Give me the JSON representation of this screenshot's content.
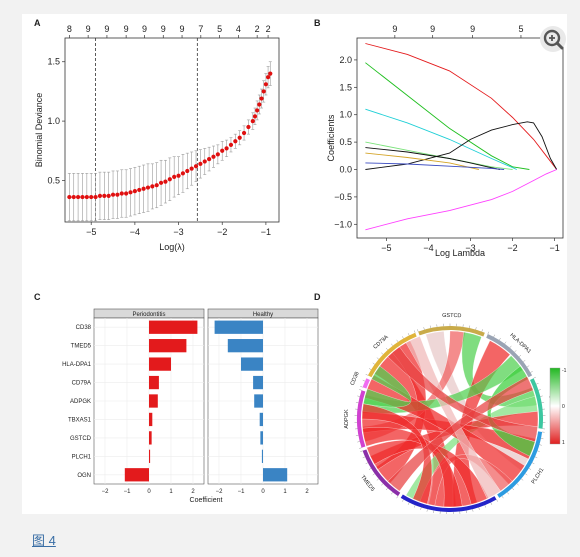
{
  "caption": "图 4",
  "chart_data": [
    {
      "panel": "A",
      "type": "scatter",
      "xlabel": "Log(λ)",
      "ylabel": "Binomial Deviance",
      "xlim": [
        -5.6,
        -0.7
      ],
      "ylim": [
        0.15,
        1.7
      ],
      "x_ticks": [
        -5,
        -4,
        -3,
        -2,
        -1
      ],
      "y_ticks": [
        0.5,
        1.0,
        1.5
      ],
      "top_ticks": [
        {
          "x": -5.5,
          "label": "8"
        },
        {
          "x": -5.07,
          "label": "9"
        },
        {
          "x": -4.64,
          "label": "9"
        },
        {
          "x": -4.2,
          "label": "9"
        },
        {
          "x": -3.78,
          "label": "9"
        },
        {
          "x": -3.35,
          "label": "9"
        },
        {
          "x": -2.92,
          "label": "9"
        },
        {
          "x": -2.49,
          "label": "7"
        },
        {
          "x": -2.06,
          "label": "5"
        },
        {
          "x": -1.63,
          "label": "4"
        },
        {
          "x": -1.2,
          "label": "2"
        },
        {
          "x": -0.95,
          "label": "2"
        }
      ],
      "vlines": [
        -4.9,
        -2.57
      ],
      "series": [
        {
          "x": [
            -5.5,
            -5.4,
            -5.3,
            -5.2,
            -5.1,
            -5.0,
            -4.9,
            -4.8,
            -4.7,
            -4.6,
            -4.5,
            -4.4,
            -4.3,
            -4.2,
            -4.1,
            -4.0,
            -3.9,
            -3.8,
            -3.7,
            -3.6,
            -3.5,
            -3.4,
            -3.3,
            -3.2,
            -3.1,
            -3.0,
            -2.9,
            -2.8,
            -2.7,
            -2.6,
            -2.5,
            -2.4,
            -2.3,
            -2.2,
            -2.1,
            -2.0,
            -1.9,
            -1.8,
            -1.7,
            -1.6,
            -1.5,
            -1.4,
            -1.3,
            -1.25,
            -1.2,
            -1.15,
            -1.1,
            -1.05,
            -1.0,
            -0.95,
            -0.9
          ],
          "y": [
            0.36,
            0.36,
            0.36,
            0.36,
            0.36,
            0.36,
            0.36,
            0.37,
            0.37,
            0.37,
            0.38,
            0.38,
            0.39,
            0.39,
            0.4,
            0.41,
            0.42,
            0.43,
            0.44,
            0.45,
            0.46,
            0.48,
            0.49,
            0.51,
            0.53,
            0.54,
            0.56,
            0.58,
            0.6,
            0.62,
            0.64,
            0.66,
            0.68,
            0.7,
            0.72,
            0.75,
            0.77,
            0.8,
            0.83,
            0.86,
            0.9,
            0.95,
            1.0,
            1.04,
            1.09,
            1.14,
            1.19,
            1.25,
            1.31,
            1.37,
            1.4
          ],
          "err": [
            0.2,
            0.2,
            0.2,
            0.2,
            0.2,
            0.2,
            0.2,
            0.2,
            0.2,
            0.2,
            0.2,
            0.2,
            0.2,
            0.2,
            0.2,
            0.2,
            0.2,
            0.2,
            0.2,
            0.19,
            0.19,
            0.19,
            0.18,
            0.18,
            0.17,
            0.16,
            0.16,
            0.15,
            0.14,
            0.13,
            0.12,
            0.11,
            0.1,
            0.09,
            0.08,
            0.08,
            0.07,
            0.06,
            0.06,
            0.06,
            0.06,
            0.06,
            0.07,
            0.07,
            0.08,
            0.08,
            0.08,
            0.09,
            0.09,
            0.09,
            0.1
          ]
        }
      ]
    },
    {
      "panel": "B",
      "type": "line",
      "xlabel": "Log Lambda",
      "ylabel": "Coefficients",
      "xlim": [
        -5.7,
        -0.8
      ],
      "ylim": [
        -1.25,
        2.4
      ],
      "x_ticks": [
        -5,
        -4,
        -3,
        -2,
        -1
      ],
      "y_ticks": [
        -1.0,
        -0.5,
        0.0,
        0.5,
        1.0,
        1.5,
        2.0
      ],
      "top_ticks": [
        {
          "x": -4.8,
          "label": "9"
        },
        {
          "x": -3.9,
          "label": "9"
        },
        {
          "x": -2.95,
          "label": "9"
        },
        {
          "x": -1.8,
          "label": "5"
        }
      ],
      "series": [
        {
          "color": "#e41a1c",
          "x": [
            -5.5,
            -4.5,
            -3.5,
            -2.5,
            -2.0,
            -1.5,
            -1.2,
            -0.95
          ],
          "y": [
            2.3,
            2.1,
            1.8,
            1.3,
            0.95,
            0.55,
            0.25,
            0.0
          ]
        },
        {
          "color": "#1fbf1f",
          "x": [
            -5.5,
            -4.5,
            -3.5,
            -2.5,
            -2.0,
            -1.6
          ],
          "y": [
            1.95,
            1.35,
            0.75,
            0.25,
            0.05,
            0.0
          ]
        },
        {
          "color": "#1fcfd6",
          "x": [
            -5.5,
            -4.5,
            -3.5,
            -2.5,
            -1.9
          ],
          "y": [
            1.1,
            0.85,
            0.55,
            0.2,
            0.0
          ]
        },
        {
          "color": "#7ce37c",
          "x": [
            -5.5,
            -4.5,
            -3.5,
            -2.5,
            -2.0
          ],
          "y": [
            0.5,
            0.35,
            0.2,
            0.05,
            0.0
          ]
        },
        {
          "color": "#111111",
          "x": [
            -5.5,
            -4.5,
            -3.5,
            -3.0,
            -2.5,
            -2.0,
            -1.65,
            -1.5,
            -1.3,
            -1.1,
            -0.95
          ],
          "y": [
            0.0,
            0.1,
            0.3,
            0.55,
            0.72,
            0.82,
            0.87,
            0.85,
            0.6,
            0.2,
            0.0
          ]
        },
        {
          "color": "#111111",
          "x": [
            -5.5,
            -4.5,
            -3.5,
            -3.0,
            -2.6,
            -2.3
          ],
          "y": [
            0.4,
            0.32,
            0.2,
            0.12,
            0.05,
            0.0
          ]
        },
        {
          "color": "#d4a52a",
          "x": [
            -5.5,
            -4.5,
            -3.5,
            -2.8
          ],
          "y": [
            0.3,
            0.22,
            0.12,
            0.0
          ]
        },
        {
          "color": "#3b4cc0",
          "x": [
            -5.5,
            -4.5,
            -3.5,
            -2.5,
            -2.2
          ],
          "y": [
            0.12,
            0.1,
            0.06,
            0.02,
            0.0
          ]
        },
        {
          "color": "#ff40ff",
          "x": [
            -5.5,
            -4.5,
            -3.5,
            -2.5,
            -2.0,
            -1.5,
            -1.2,
            -0.95
          ],
          "y": [
            -1.1,
            -0.9,
            -0.75,
            -0.55,
            -0.4,
            -0.2,
            -0.08,
            0.0
          ]
        }
      ]
    },
    {
      "panel": "C",
      "type": "bar",
      "xlabel": "Coefficient",
      "facets": [
        "Periodontitis",
        "Healthy"
      ],
      "categories": [
        "CD38",
        "TMED5",
        "HLA-DPA1",
        "CD79A",
        "ADPGK",
        "TBXAS1",
        "GSTCD",
        "PLCH1",
        "OGN"
      ],
      "xlim": [
        -2.5,
        2.5
      ],
      "x_ticks": [
        -2,
        -1,
        0,
        1,
        2
      ],
      "series": [
        {
          "color": "#e31a1c",
          "values": [
            2.2,
            1.7,
            1.0,
            0.45,
            0.4,
            0.15,
            0.12,
            0.05,
            -1.1
          ]
        },
        {
          "color": "#3a84c4",
          "values": [
            -2.2,
            -1.6,
            -1.0,
            -0.45,
            -0.4,
            -0.15,
            -0.12,
            -0.05,
            1.1
          ]
        }
      ]
    },
    {
      "panel": "D",
      "type": "heatmap",
      "genes": [
        {
          "name": "CD79A",
          "start": -62,
          "end": -22,
          "color": "#e0b43a"
        },
        {
          "name": "GSTCD",
          "start": -20,
          "end": 22,
          "color": "#c9ab4a"
        },
        {
          "name": "HLA-DPA1",
          "start": 24,
          "end": 62,
          "color": "#9aa4b4"
        },
        {
          "name": "OGN",
          "start": 64,
          "end": 96,
          "color": "#3cc7a0"
        },
        {
          "name": "PLCH1",
          "start": 98,
          "end": 148,
          "color": "#2d9be0"
        },
        {
          "name": "TBXAS1",
          "start": 150,
          "end": 212,
          "color": "#2424c8"
        },
        {
          "name": "TMED5",
          "start": 214,
          "end": 250,
          "color": "#8a2fa8"
        },
        {
          "name": "ADPGK",
          "start": 252,
          "end": 288,
          "color": "#d042d0"
        },
        {
          "name": "CD38",
          "start": 290,
          "end": 296,
          "color": "#f06ef0"
        }
      ],
      "links": [
        {
          "a": -50,
          "b": 185,
          "color": "#ef2a2a",
          "w": 18
        },
        {
          "a": -34,
          "b": 230,
          "color": "#ef2a2a",
          "w": 14
        },
        {
          "a": -10,
          "b": 120,
          "color": "#e8c8c8",
          "w": 12
        },
        {
          "a": 5,
          "b": 260,
          "color": "#f06060",
          "w": 10
        },
        {
          "a": 15,
          "b": 75,
          "color": "#4fd04f",
          "w": 12
        },
        {
          "a": 35,
          "b": 170,
          "color": "#ef2a2a",
          "w": 16
        },
        {
          "a": 50,
          "b": 280,
          "color": "#4fd04f",
          "w": 12
        },
        {
          "a": 80,
          "b": 205,
          "color": "#7ee07e",
          "w": 10
        },
        {
          "a": 90,
          "b": 240,
          "color": "#ef2a2a",
          "w": 10
        },
        {
          "a": 110,
          "b": 268,
          "color": "#ef2a2a",
          "w": 14
        },
        {
          "a": 130,
          "b": 292,
          "color": "#ef2a2a",
          "w": 16
        },
        {
          "a": 140,
          "b": 195,
          "color": "#f06060",
          "w": 10
        },
        {
          "a": 160,
          "b": 245,
          "color": "#ef2a2a",
          "w": 12
        },
        {
          "a": 178,
          "b": 258,
          "color": "#ef2a2a",
          "w": 12
        },
        {
          "a": 200,
          "b": 275,
          "color": "#ef2a2a",
          "w": 10
        },
        {
          "a": -58,
          "b": 285,
          "color": "#4fd04f",
          "w": 10
        },
        {
          "a": -25,
          "b": 150,
          "color": "#f0b8b8",
          "w": 10
        },
        {
          "a": 58,
          "b": 110,
          "color": "#3ccf3c",
          "w": 10
        },
        {
          "a": 66,
          "b": 220,
          "color": "#e84040",
          "w": 10
        },
        {
          "a": 100,
          "b": -40,
          "color": "#e84040",
          "w": 10
        }
      ],
      "legend_ticks": [
        "-1",
        "0",
        "1"
      ]
    }
  ]
}
